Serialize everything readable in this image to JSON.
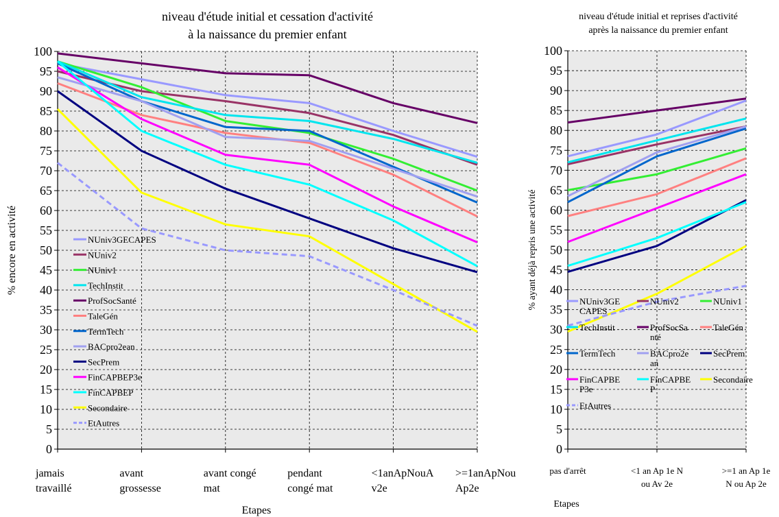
{
  "chart_data": [
    {
      "type": "line",
      "title": "niveau d'étude initial et cessation d'activité à la naissance du premier enfant",
      "title_lines": [
        "niveau d'étude initial et cessation d'activité",
        "à la naissance du premier enfant"
      ],
      "xlabel": "Etapes",
      "ylabel": "% encore en activité",
      "ylim": [
        0,
        100
      ],
      "ytick_step": 5,
      "grid": true,
      "legend_position": "inside-bottom-left",
      "categories": [
        "jamais travaillé",
        "avant grossesse",
        "avant congé mat",
        "pendant congé mat",
        "<1anApNouAv2e",
        ">=1anApNouAp2e"
      ],
      "category_lines": [
        [
          "jamais",
          "travaillé"
        ],
        [
          "avant",
          "grossesse"
        ],
        [
          "avant congé",
          "mat"
        ],
        [
          "pendant",
          "congé mat"
        ],
        [
          "<1anApNouA",
          "v2e"
        ],
        [
          ">=1anApNou",
          "Ap2e"
        ]
      ],
      "series": [
        {
          "name": "NUniv3GECAPES",
          "color": "#9999ff",
          "dashed": false,
          "values": [
            97,
            93,
            89,
            87,
            80,
            73.5
          ]
        },
        {
          "name": "NUniv2",
          "color": "#993366",
          "dashed": false,
          "values": [
            95,
            90,
            87.5,
            84.5,
            79,
            71.5
          ]
        },
        {
          "name": "NUniv1",
          "color": "#33ee33",
          "dashed": false,
          "values": [
            97.5,
            91,
            82.5,
            79.5,
            73,
            65
          ]
        },
        {
          "name": "TechInstit",
          "color": "#00e5ee",
          "dashed": false,
          "values": [
            97.5,
            88.5,
            84,
            82.5,
            78,
            72
          ]
        },
        {
          "name": "ProfSocSanté",
          "color": "#660066",
          "dashed": false,
          "values": [
            99.5,
            97,
            94.5,
            94,
            87,
            82
          ]
        },
        {
          "name": "TaleGén",
          "color": "#ff8080",
          "dashed": false,
          "values": [
            92,
            84,
            79.5,
            77,
            69,
            58.5
          ]
        },
        {
          "name": "TermTech",
          "color": "#0066cc",
          "dashed": false,
          "values": [
            97,
            87.5,
            81,
            80,
            71,
            62
          ]
        },
        {
          "name": "BACpro2ean",
          "color": "#a0a0f0",
          "dashed": false,
          "values": [
            93.5,
            87.5,
            78.5,
            77.5,
            70.5,
            63.5
          ]
        },
        {
          "name": "SecPrem",
          "color": "#000080",
          "dashed": false,
          "values": [
            90,
            75,
            65.5,
            58,
            50.5,
            44.5
          ]
        },
        {
          "name": "FinCAPBEP3e",
          "color": "#ff00ff",
          "dashed": false,
          "values": [
            96,
            83,
            74,
            71.5,
            61,
            52
          ]
        },
        {
          "name": "FinCAPBEP",
          "color": "#00ffff",
          "dashed": false,
          "values": [
            97.5,
            80,
            71.5,
            66.5,
            57.5,
            46
          ]
        },
        {
          "name": "Secondaire",
          "color": "#ffff00",
          "dashed": false,
          "values": [
            85.5,
            64.5,
            56.5,
            53.5,
            41.5,
            29.5
          ]
        },
        {
          "name": "EtAutres",
          "color": "#9999ff",
          "dashed": true,
          "values": [
            72,
            55.5,
            50,
            48.5,
            40,
            31
          ]
        }
      ]
    },
    {
      "type": "line",
      "title": "niveau d'étude initial et reprises d'activité après la naissance du premier enfant",
      "title_lines": [
        "niveau d'étude initial et reprises d'activité",
        "après la naissance du premier enfant"
      ],
      "xlabel": "Etapes",
      "ylabel": "% ayant déjà repris une activité",
      "ylim": [
        0,
        100
      ],
      "ytick_step": 5,
      "grid": true,
      "legend_position": "inside-bottom",
      "categories": [
        "pas d'arrêt",
        "<1 an Ap 1e N ou Av 2e",
        ">=1 an Ap 1e N ou Ap 2e"
      ],
      "category_lines": [
        [
          "pas d'arrêt"
        ],
        [
          "<1 an Ap 1e N",
          "ou Av 2e"
        ],
        [
          ">=1 an Ap 1e",
          "N ou Ap 2e"
        ]
      ],
      "legend_entries": [
        {
          "series": "NUniv3GECAPES",
          "lines": [
            "NUniv3GE",
            "CAPES"
          ]
        },
        {
          "series": "NUniv2",
          "lines": [
            "NUniv2"
          ]
        },
        {
          "series": "NUniv1",
          "lines": [
            "NUniv1"
          ]
        },
        {
          "series": "TechInstit",
          "lines": [
            "TechInstit"
          ]
        },
        {
          "series": "ProfSocSanté",
          "lines": [
            "ProfSocSa",
            "nté"
          ]
        },
        {
          "series": "TaleGén",
          "lines": [
            "TaleGén"
          ]
        },
        {
          "series": "TermTech",
          "lines": [
            "TermTech"
          ]
        },
        {
          "series": "BACpro2ean",
          "lines": [
            "BACpro2e",
            "an"
          ]
        },
        {
          "series": "SecPrem",
          "lines": [
            "SecPrem"
          ]
        },
        {
          "series": "FinCAPBEP3e",
          "lines": [
            "FinCAPBE",
            "P3e"
          ]
        },
        {
          "series": "FinCAPBEP",
          "lines": [
            "FinCAPBE",
            "P"
          ]
        },
        {
          "series": "Secondaire",
          "lines": [
            "Secondaire"
          ]
        },
        {
          "series": "EtAutres",
          "lines": [
            "EtAutres"
          ]
        }
      ],
      "series": [
        {
          "name": "NUniv3GECAPES",
          "color": "#9999ff",
          "dashed": false,
          "values": [
            73.5,
            79,
            87.5
          ]
        },
        {
          "name": "NUniv2",
          "color": "#993366",
          "dashed": false,
          "values": [
            71.5,
            76.5,
            81
          ]
        },
        {
          "name": "NUniv1",
          "color": "#33ee33",
          "dashed": false,
          "values": [
            65,
            69,
            75.5
          ]
        },
        {
          "name": "TechInstit",
          "color": "#00e5ee",
          "dashed": false,
          "values": [
            72,
            77.5,
            83
          ]
        },
        {
          "name": "ProfSocSanté",
          "color": "#660066",
          "dashed": false,
          "values": [
            82,
            85,
            88
          ]
        },
        {
          "name": "TaleGén",
          "color": "#ff8080",
          "dashed": false,
          "values": [
            58.5,
            64,
            73
          ]
        },
        {
          "name": "TermTech",
          "color": "#0066cc",
          "dashed": false,
          "values": [
            62,
            73.5,
            80.5
          ]
        },
        {
          "name": "BACpro2ean",
          "color": "#a0a0f0",
          "dashed": false,
          "values": [
            63.5,
            74.5,
            81
          ]
        },
        {
          "name": "SecPrem",
          "color": "#000080",
          "dashed": false,
          "values": [
            44.5,
            51,
            62.5
          ]
        },
        {
          "name": "FinCAPBEP3e",
          "color": "#ff00ff",
          "dashed": false,
          "values": [
            52,
            60.5,
            69
          ]
        },
        {
          "name": "FinCAPBEP",
          "color": "#00ffff",
          "dashed": false,
          "values": [
            46,
            53,
            62
          ]
        },
        {
          "name": "Secondaire",
          "color": "#ffff00",
          "dashed": false,
          "values": [
            29.5,
            39,
            51
          ]
        },
        {
          "name": "EtAutres",
          "color": "#9999ff",
          "dashed": true,
          "values": [
            31,
            37,
            41
          ]
        }
      ]
    }
  ]
}
